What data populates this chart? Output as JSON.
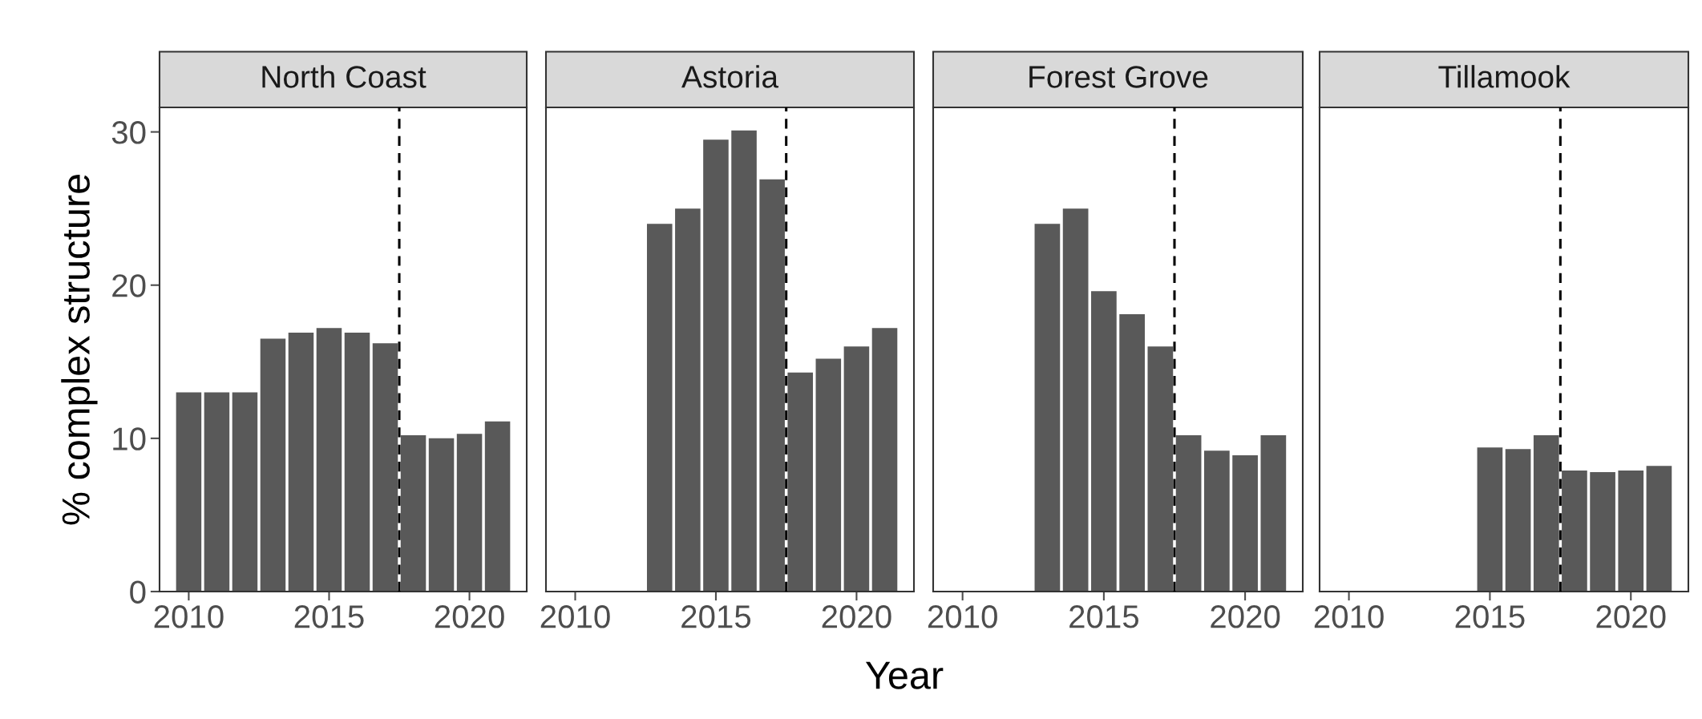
{
  "chart_data": [
    {
      "type": "bar",
      "title": "North Coast",
      "ylabel": "% complex structure",
      "x": [
        2010,
        2011,
        2012,
        2013,
        2014,
        2015,
        2016,
        2017,
        2018,
        2019,
        2020,
        2021
      ],
      "values": [
        13,
        13,
        13,
        16.5,
        16.9,
        17.2,
        16.9,
        16.2,
        10.2,
        10.0,
        10.3,
        11.1
      ],
      "color": "#595959",
      "xlim": [
        2008.96,
        2022.04
      ],
      "xticks": [
        2010,
        2015,
        2020
      ],
      "ylim": [
        0,
        31.6
      ],
      "yticks": [
        0,
        10,
        20,
        30
      ],
      "grid": false,
      "ref_lines": [
        {
          "axis": "x",
          "value": 2017.5,
          "color": "#000000",
          "line_style": "dashed"
        }
      ]
    },
    {
      "type": "bar",
      "title": "Astoria",
      "xlabel": "Year",
      "x": [
        2013,
        2014,
        2015,
        2016,
        2017,
        2018,
        2019,
        2020,
        2021
      ],
      "values": [
        24.0,
        25.0,
        29.5,
        30.1,
        26.9,
        14.3,
        15.2,
        16.0,
        17.2
      ],
      "color": "#595959",
      "xlim": [
        2008.96,
        2022.04
      ],
      "xticks": [
        2010,
        2015,
        2020
      ],
      "ylim": [
        0,
        31.6
      ],
      "yticks": [
        0,
        10,
        20,
        30
      ],
      "tick_labels": "x",
      "grid": false,
      "ref_lines": [
        {
          "axis": "x",
          "value": 2017.5,
          "color": "#000000",
          "line_style": "dashed"
        }
      ]
    },
    {
      "type": "bar",
      "title": "Forest Grove",
      "x": [
        2013,
        2014,
        2015,
        2016,
        2017,
        2018,
        2019,
        2020,
        2021
      ],
      "values": [
        24.0,
        25.0,
        19.6,
        18.1,
        16.0,
        10.2,
        9.2,
        8.9,
        10.2
      ],
      "color": "#595959",
      "xlim": [
        2008.96,
        2022.04
      ],
      "xticks": [
        2010,
        2015,
        2020
      ],
      "ylim": [
        0,
        31.6
      ],
      "yticks": [
        0,
        10,
        20,
        30
      ],
      "tick_labels": "x",
      "grid": false,
      "ref_lines": [
        {
          "axis": "x",
          "value": 2017.5,
          "color": "#000000",
          "line_style": "dashed"
        }
      ]
    },
    {
      "type": "bar",
      "title": "Tillamook",
      "x": [
        2015,
        2016,
        2017,
        2018,
        2019,
        2020,
        2021
      ],
      "values": [
        9.4,
        9.3,
        10.2,
        7.9,
        7.8,
        7.9,
        8.2
      ],
      "color": "#595959",
      "xlim": [
        2008.96,
        2022.04
      ],
      "xticks": [
        2010,
        2015,
        2020
      ],
      "ylim": [
        0,
        31.6
      ],
      "yticks": [
        0,
        10,
        20,
        30
      ],
      "tick_labels": "x",
      "grid": false,
      "ref_lines": [
        {
          "axis": "x",
          "value": 2017.5,
          "color": "#000000",
          "line_style": "dashed"
        }
      ]
    }
  ]
}
